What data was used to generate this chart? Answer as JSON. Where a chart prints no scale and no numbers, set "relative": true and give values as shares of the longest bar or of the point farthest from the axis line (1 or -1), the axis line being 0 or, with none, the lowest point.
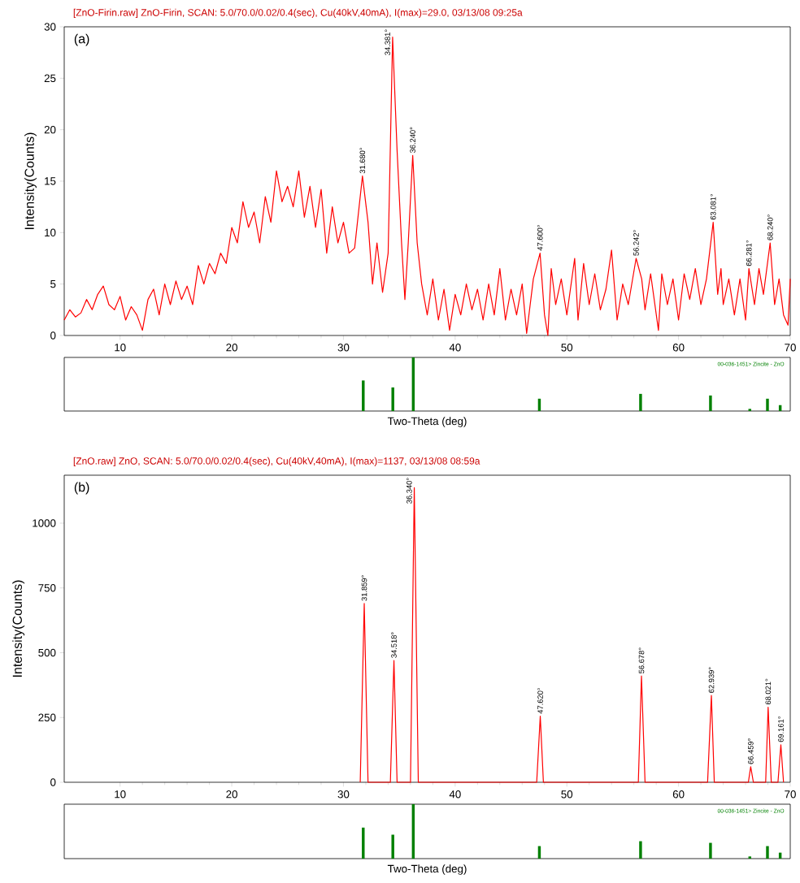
{
  "chart_data": [
    {
      "type": "line",
      "title": "[ZnO-Firin.raw] ZnO-Firin, SCAN: 5.0/70.0/0.02/0.4(sec), Cu(40kV,40mA), I(max)=29.0, 03/13/08 09:25a",
      "ylabel": "Intensity(Counts)",
      "color": "#ff0000",
      "xlim": [
        5,
        70
      ],
      "ylim": [
        0,
        30
      ],
      "xticks": [
        10,
        20,
        30,
        40,
        50,
        60,
        70
      ],
      "yticks": [
        0,
        5,
        10,
        15,
        20,
        25,
        30
      ],
      "x": [
        5,
        5.5,
        6,
        6.5,
        7,
        7.5,
        8,
        8.5,
        9,
        9.5,
        10,
        10.5,
        11,
        11.5,
        12,
        12.5,
        13,
        13.5,
        14,
        14.5,
        15,
        15.5,
        16,
        16.5,
        17,
        17.5,
        18,
        18.5,
        19,
        19.5,
        20,
        20.5,
        21,
        21.5,
        22,
        22.5,
        23,
        23.5,
        24,
        24.5,
        25,
        25.5,
        26,
        26.5,
        27,
        27.5,
        28,
        28.5,
        29,
        29.5,
        30,
        30.5,
        31,
        31.7,
        32.2,
        32.6,
        33,
        33.5,
        34,
        34.4,
        34.8,
        35.2,
        35.5,
        35.8,
        36.2,
        36.6,
        37,
        37.5,
        38,
        38.5,
        39,
        39.5,
        40,
        40.5,
        41,
        41.5,
        42,
        42.5,
        43,
        43.5,
        44,
        44.5,
        45,
        45.5,
        46,
        46.4,
        47,
        47.6,
        48,
        48.3,
        48.6,
        49,
        49.5,
        50,
        50.7,
        51,
        51.5,
        52,
        52.5,
        53,
        53.5,
        54,
        54.5,
        55,
        55.5,
        56.2,
        56.7,
        57,
        57.5,
        58.2,
        58.5,
        59,
        59.5,
        60,
        60.5,
        61,
        61.5,
        62,
        62.5,
        63.1,
        63.5,
        63.8,
        64,
        64.5,
        65,
        65.5,
        66,
        66.3,
        66.8,
        67.2,
        67.6,
        68.2,
        68.6,
        69,
        69.4,
        69.8,
        70
      ],
      "values": [
        1.5,
        2.5,
        1.8,
        2.2,
        3.5,
        2.5,
        4.0,
        4.8,
        3.0,
        2.5,
        3.8,
        1.5,
        2.8,
        2.0,
        0.5,
        3.5,
        4.5,
        2.0,
        5.0,
        3.0,
        5.3,
        3.5,
        4.8,
        3.0,
        6.8,
        5.0,
        7.0,
        6.0,
        8.0,
        7.0,
        10.5,
        9.0,
        13.0,
        10.5,
        12.0,
        9.0,
        13.5,
        11.0,
        16.0,
        13.0,
        14.5,
        12.5,
        16.0,
        11.5,
        14.5,
        10.5,
        14.2,
        8.0,
        12.5,
        9.0,
        11.0,
        8.0,
        8.5,
        15.5,
        11.0,
        5.0,
        9.0,
        4.2,
        8.0,
        29.0,
        18.0,
        9.0,
        3.5,
        9.0,
        17.5,
        9.0,
        5.0,
        2.0,
        5.5,
        1.5,
        4.5,
        0.5,
        4.0,
        2.0,
        5.0,
        2.5,
        4.5,
        1.5,
        5.0,
        2.0,
        6.5,
        1.5,
        4.5,
        2.0,
        5.0,
        0.2,
        5.5,
        8.0,
        2.0,
        0.0,
        6.5,
        3.0,
        5.5,
        2.0,
        7.5,
        1.5,
        7.0,
        3.0,
        6.0,
        2.5,
        4.5,
        8.3,
        1.5,
        5.0,
        3.0,
        7.5,
        5.5,
        2.5,
        6.0,
        0.5,
        6.0,
        3.0,
        5.5,
        1.5,
        6.0,
        3.5,
        6.5,
        3.0,
        5.5,
        11.0,
        4.0,
        6.5,
        3.0,
        5.5,
        2.0,
        5.5,
        1.5,
        6.5,
        3.0,
        6.5,
        4.0,
        9.0,
        3.0,
        5.5,
        2.0,
        1.0,
        5.5
      ],
      "annotations": [
        "(a)",
        {
          "text": "31.680°",
          "x": 31.7,
          "y": 15.5
        },
        {
          "text": "34.381°",
          "x": 34.4,
          "y": 29.0
        },
        {
          "text": "36.240°",
          "x": 36.2,
          "y": 17.5
        },
        {
          "text": "47.600°",
          "x": 47.6,
          "y": 8.0
        },
        {
          "text": "56.242°",
          "x": 56.2,
          "y": 7.5
        },
        {
          "text": "63.081°",
          "x": 63.1,
          "y": 11.0
        },
        {
          "text": "66.281°",
          "x": 66.3,
          "y": 6.5
        },
        {
          "text": "68.240°",
          "x": 68.2,
          "y": 9.0
        }
      ]
    },
    {
      "type": "bar",
      "relative": true,
      "xlabel": "Two-Theta (deg)",
      "color": "#008000",
      "xlim": [
        5,
        70
      ],
      "x": [
        31.77,
        34.42,
        36.25,
        47.54,
        56.6,
        62.86,
        66.38,
        67.96,
        69.1
      ],
      "values": [
        0.57,
        0.44,
        1,
        0.23,
        0.32,
        0.29,
        0.04,
        0.23,
        0.11
      ],
      "annotations": [
        "00-036-1451> Zincite - ZnO"
      ]
    },
    {
      "type": "line",
      "title": "[ZnO.raw] ZnO, SCAN: 5.0/70.0/0.02/0.4(sec), Cu(40kV,40mA), I(max)=1137, 03/13/08 08:59a",
      "ylabel": "Intensity(Counts)",
      "color": "#ff0000",
      "xlim": [
        5,
        70
      ],
      "ylim": [
        0,
        1185
      ],
      "xticks": [
        10,
        20,
        30,
        40,
        50,
        60,
        70
      ],
      "yticks": [
        0,
        250,
        500,
        750,
        1000
      ],
      "x": [
        31.5,
        31.86,
        32.2,
        34.2,
        34.52,
        34.8,
        36.0,
        36.34,
        36.7,
        47.3,
        47.62,
        47.9,
        56.4,
        56.68,
        57.0,
        62.6,
        62.94,
        63.2,
        66.25,
        66.46,
        66.7,
        67.8,
        68.02,
        68.3,
        68.9,
        69.16,
        69.4
      ],
      "values": [
        0,
        690,
        0,
        0,
        470,
        0,
        0,
        1137,
        0,
        0,
        255,
        0,
        0,
        410,
        0,
        0,
        335,
        0,
        0,
        60,
        0,
        0,
        290,
        0,
        0,
        145,
        0
      ],
      "annotations": [
        "(b)",
        {
          "text": "31.859°",
          "x": 31.86,
          "y": 690
        },
        {
          "text": "34.518°",
          "x": 34.52,
          "y": 470
        },
        {
          "text": "36.340°",
          "x": 36.34,
          "y": 1137
        },
        {
          "text": "47.620°",
          "x": 47.62,
          "y": 255
        },
        {
          "text": "56.678°",
          "x": 56.68,
          "y": 410
        },
        {
          "text": "62.939°",
          "x": 62.94,
          "y": 335
        },
        {
          "text": "66.459°",
          "x": 66.46,
          "y": 60
        },
        {
          "text": "68.021°",
          "x": 68.02,
          "y": 290
        },
        {
          "text": "69.161°",
          "x": 69.16,
          "y": 145
        }
      ]
    },
    {
      "type": "bar",
      "relative": true,
      "xlabel": "Two-Theta (deg)",
      "color": "#008000",
      "xlim": [
        5,
        70
      ],
      "x": [
        31.77,
        34.42,
        36.25,
        47.54,
        56.6,
        62.86,
        66.38,
        67.96,
        69.1
      ],
      "values": [
        0.57,
        0.44,
        1,
        0.23,
        0.32,
        0.29,
        0.04,
        0.23,
        0.11
      ],
      "annotations": [
        "00-036-1451> Zincite - ZnO"
      ]
    }
  ]
}
